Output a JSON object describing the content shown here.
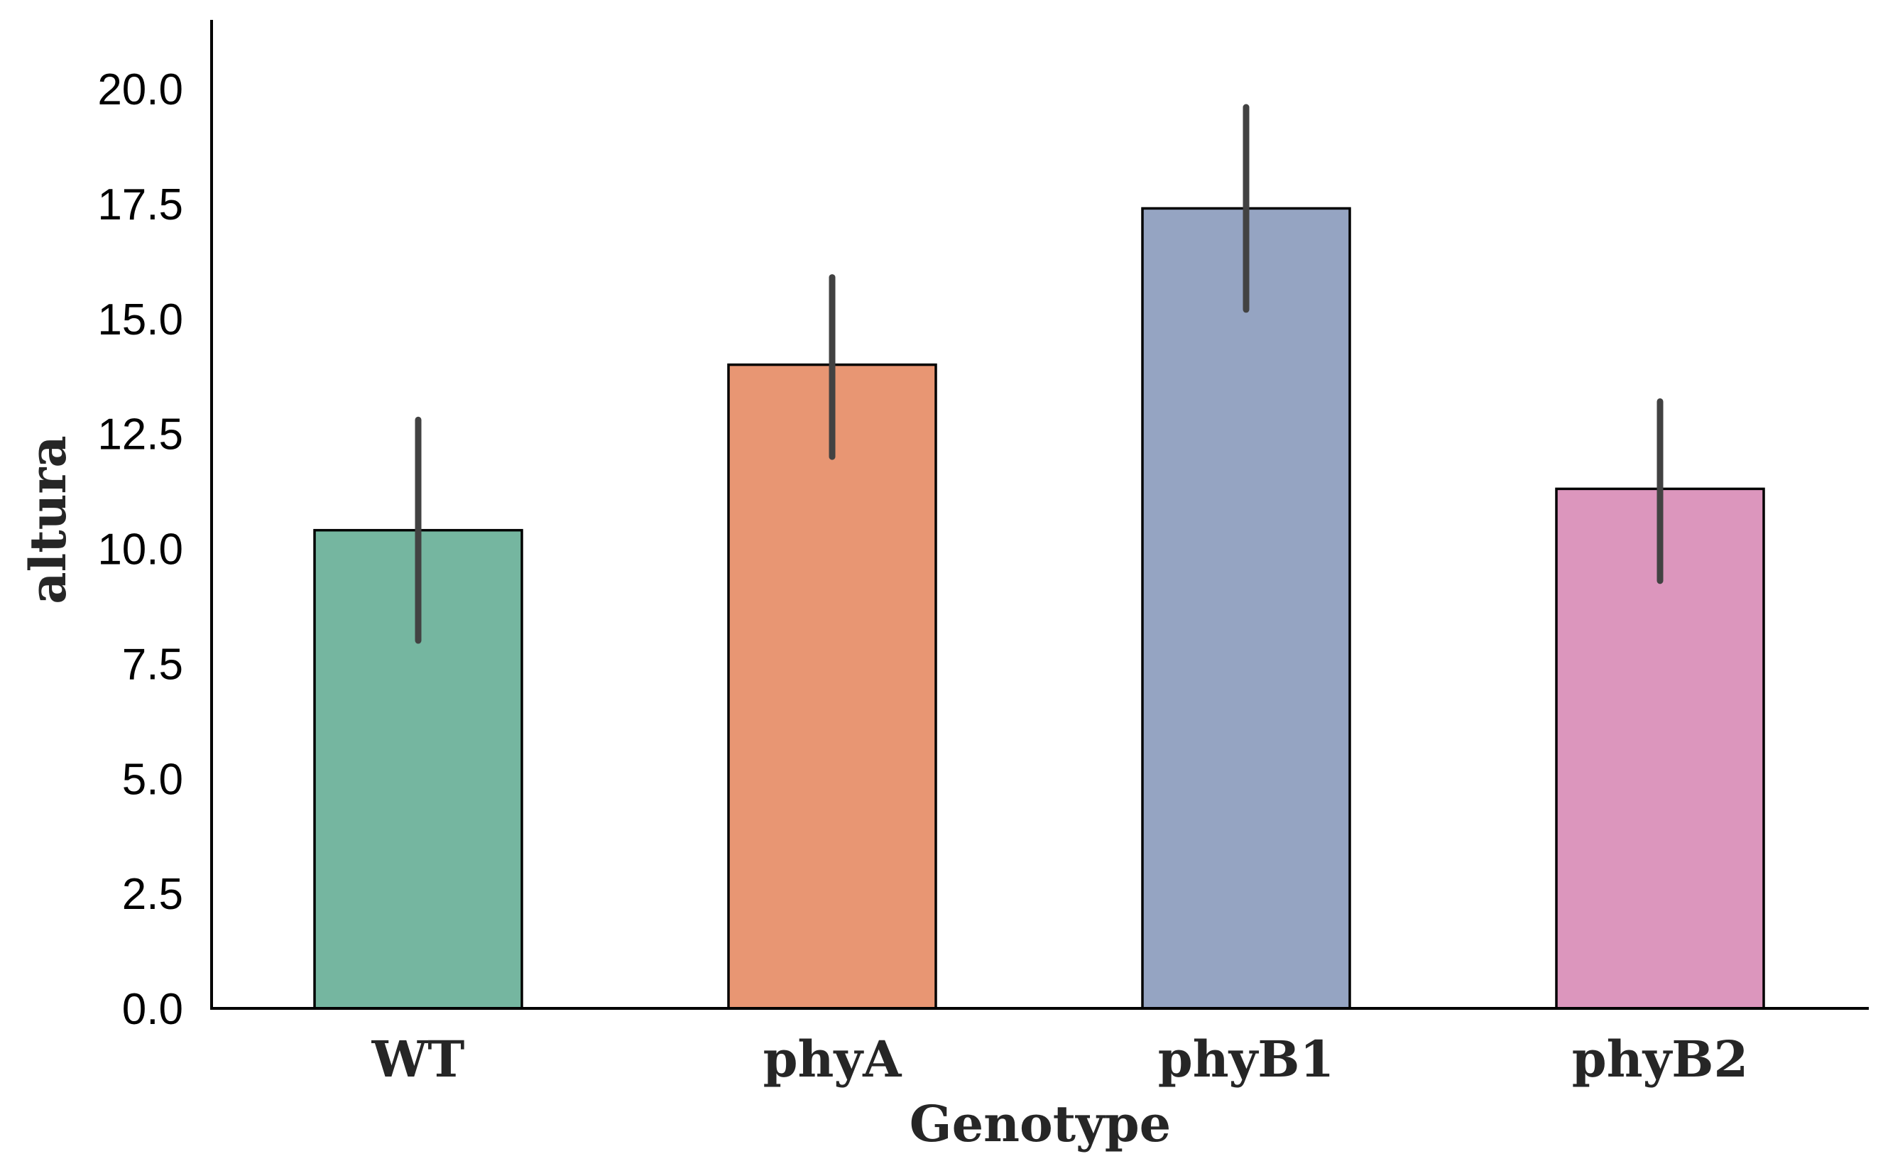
{
  "chart_data": {
    "type": "bar",
    "categories": [
      "WT",
      "phyA",
      "phyB1",
      "phyB2"
    ],
    "values": [
      10.4,
      14.0,
      17.4,
      11.3
    ],
    "error_bars": [
      {
        "low": 8.0,
        "high": 12.8
      },
      {
        "low": 12.0,
        "high": 15.9
      },
      {
        "low": 15.2,
        "high": 19.6
      },
      {
        "low": 9.3,
        "high": 13.2
      }
    ],
    "colors": [
      "#75b6a0",
      "#e89673",
      "#95a4c2",
      "#dc96bd"
    ],
    "xlabel": "Genotype",
    "ylabel": "altura",
    "ylim": [
      0,
      21.5
    ],
    "yticks": [
      "0.0",
      "2.5",
      "5.0",
      "7.5",
      "10.0",
      "12.5",
      "15.0",
      "17.5",
      "20.0"
    ],
    "grid": false,
    "legend": "none"
  }
}
